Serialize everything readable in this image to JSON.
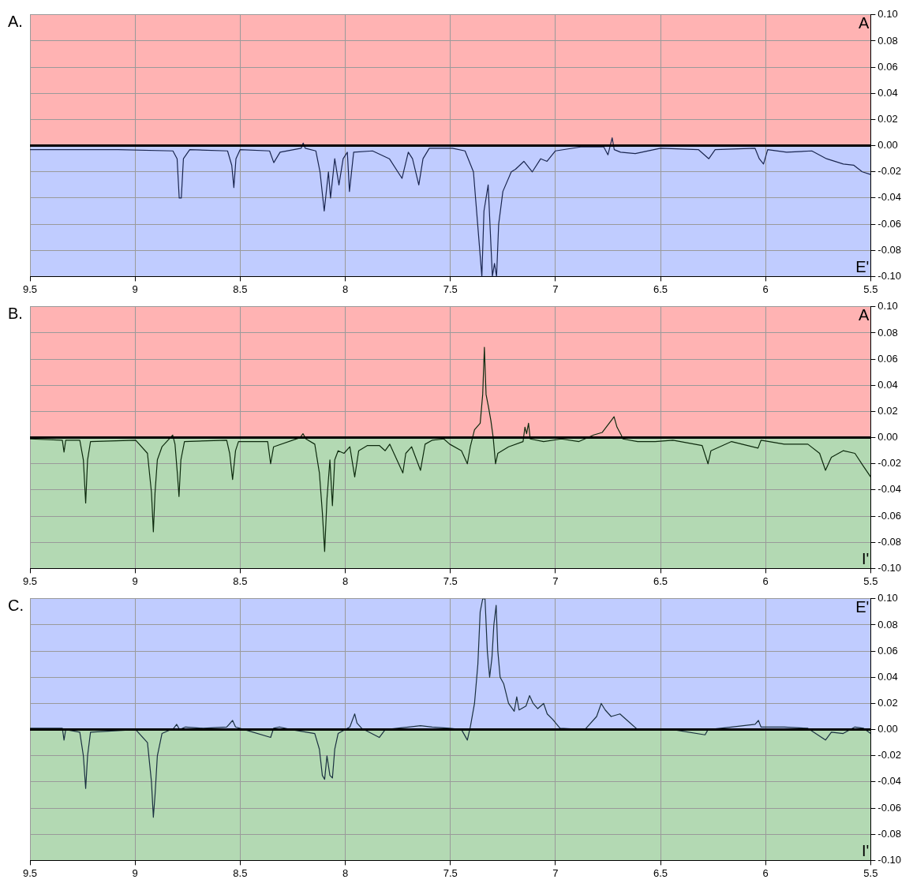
{
  "chart_data": [
    {
      "type": "line",
      "title": "A.",
      "xlim": [
        9.5,
        5.5
      ],
      "xticks": [
        9.5,
        9,
        8.5,
        8,
        7.5,
        7,
        6.5,
        6,
        5.5
      ],
      "ylim": [
        -0.1,
        0.1
      ],
      "yticks": [
        {
          "value": 0.1,
          "label": "0.10"
        },
        {
          "value": 0.08,
          "label": "0.08"
        },
        {
          "value": 0.06,
          "label": "0.06"
        },
        {
          "value": 0.04,
          "label": "0.04"
        },
        {
          "value": 0.02,
          "label": "0.02"
        },
        {
          "value": 0,
          "label": "0.00"
        },
        {
          "value": -0.02,
          "label": "-0.02"
        },
        {
          "value": -0.04,
          "label": "-0.04"
        },
        {
          "value": -0.06,
          "label": "-0.06"
        },
        {
          "value": -0.08,
          "label": "-0.08"
        },
        {
          "value": -0.1,
          "label": "-0.10"
        }
      ],
      "grid": true,
      "legend": false,
      "marker": "none",
      "line_style": "solid",
      "bands": [
        {
          "axis": "y",
          "from": 0,
          "to": 0.1,
          "label": "A",
          "color": "#ffb3b3"
        },
        {
          "axis": "y",
          "from": -0.1,
          "to": 0,
          "label": "E'",
          "color": "#c0ccff"
        }
      ],
      "ref_lines": [
        {
          "axis": "y",
          "value": 0,
          "color": "#000000"
        }
      ],
      "series": [
        {
          "color": "#1a2650",
          "x": [
            9.5,
            9.08,
            8.82,
            8.8,
            8.79,
            8.78,
            8.77,
            8.74,
            8.56,
            8.54,
            8.53,
            8.52,
            8.5,
            8.36,
            8.34,
            8.31,
            8.21,
            8.2,
            8.19,
            8.14,
            8.12,
            8.1,
            8.08,
            8.07,
            8.05,
            8.03,
            8.01,
            7.99,
            7.98,
            7.96,
            7.87,
            7.83,
            7.79,
            7.73,
            7.7,
            7.68,
            7.65,
            7.63,
            7.6,
            7.49,
            7.43,
            7.39,
            7.37,
            7.35,
            7.34,
            7.32,
            7.3,
            7.29,
            7.28,
            7.27,
            7.25,
            7.21,
            7.19,
            7.15,
            7.11,
            7.07,
            7.04,
            7.0,
            6.88,
            6.77,
            6.75,
            6.73,
            6.72,
            6.69,
            6.62,
            6.5,
            6.32,
            6.27,
            6.24,
            6.05,
            6.03,
            6.01,
            5.99,
            5.9,
            5.78,
            5.71,
            5.63,
            5.58,
            5.54,
            5.5
          ],
          "values": [
            -0.003,
            -0.003,
            -0.004,
            -0.01,
            -0.04,
            -0.04,
            -0.01,
            -0.003,
            -0.004,
            -0.015,
            -0.032,
            -0.01,
            -0.003,
            -0.004,
            -0.013,
            -0.005,
            -0.002,
            0.002,
            -0.002,
            -0.004,
            -0.02,
            -0.05,
            -0.02,
            -0.04,
            -0.01,
            -0.03,
            -0.01,
            -0.005,
            -0.035,
            -0.005,
            -0.004,
            -0.007,
            -0.01,
            -0.025,
            -0.005,
            -0.01,
            -0.03,
            -0.01,
            -0.002,
            -0.002,
            -0.004,
            -0.02,
            -0.06,
            -0.1,
            -0.05,
            -0.03,
            -0.1,
            -0.09,
            -0.1,
            -0.06,
            -0.035,
            -0.02,
            -0.018,
            -0.012,
            -0.02,
            -0.01,
            -0.012,
            -0.004,
            -0.001,
            -0.001,
            -0.007,
            0.006,
            -0.003,
            -0.005,
            -0.006,
            -0.002,
            -0.003,
            -0.01,
            -0.003,
            -0.002,
            -0.01,
            -0.014,
            -0.003,
            -0.005,
            -0.004,
            -0.01,
            -0.014,
            -0.015,
            -0.02,
            -0.022
          ]
        }
      ]
    },
    {
      "type": "line",
      "title": "B.",
      "xlim": [
        9.5,
        5.5
      ],
      "xticks": [
        9.5,
        9,
        8.5,
        8,
        7.5,
        7,
        6.5,
        6,
        5.5
      ],
      "ylim": [
        -0.1,
        0.1
      ],
      "yticks": [
        {
          "value": 0.1,
          "label": "0.10"
        },
        {
          "value": 0.08,
          "label": "0.08"
        },
        {
          "value": 0.06,
          "label": "0.06"
        },
        {
          "value": 0.04,
          "label": "0.04"
        },
        {
          "value": 0.02,
          "label": "0.02"
        },
        {
          "value": 0,
          "label": "0.00"
        },
        {
          "value": -0.02,
          "label": "-0.02"
        },
        {
          "value": -0.04,
          "label": "-0.04"
        },
        {
          "value": -0.06,
          "label": "-0.06"
        },
        {
          "value": -0.08,
          "label": "-0.08"
        },
        {
          "value": -0.1,
          "label": "-0.10"
        }
      ],
      "grid": true,
      "legend": false,
      "marker": "none",
      "line_style": "solid",
      "bands": [
        {
          "axis": "y",
          "from": 0,
          "to": 0.1,
          "label": "A",
          "color": "#ffb3b3"
        },
        {
          "axis": "y",
          "from": -0.1,
          "to": 0,
          "label": "I'",
          "color": "#b3d9b3"
        }
      ],
      "ref_lines": [
        {
          "axis": "y",
          "value": 0,
          "color": "#000000"
        }
      ],
      "series": [
        {
          "color": "#0d2a0d",
          "x": [
            9.5,
            9.346,
            9.338,
            9.33,
            9.263,
            9.246,
            9.235,
            9.226,
            9.212,
            8.997,
            8.941,
            8.922,
            8.913,
            8.905,
            8.894,
            8.872,
            8.821,
            8.81,
            8.799,
            8.791,
            8.782,
            8.765,
            8.564,
            8.55,
            8.536,
            8.522,
            8.508,
            8.369,
            8.355,
            8.341,
            8.215,
            8.201,
            8.187,
            8.145,
            8.123,
            8.109,
            8.098,
            8.087,
            8.073,
            8.061,
            8.05,
            8.034,
            8.006,
            7.978,
            7.955,
            7.936,
            7.894,
            7.838,
            7.81,
            7.788,
            7.726,
            7.712,
            7.684,
            7.642,
            7.62,
            7.587,
            7.531,
            7.503,
            7.447,
            7.419,
            7.405,
            7.385,
            7.358,
            7.346,
            7.338,
            7.33,
            7.318,
            7.307,
            7.296,
            7.285,
            7.274,
            7.223,
            7.154,
            7.145,
            7.137,
            7.128,
            7.12,
            7.056,
            6.972,
            6.888,
            6.818,
            6.777,
            6.735,
            6.721,
            6.707,
            6.687,
            6.679,
            6.609,
            6.525,
            6.441,
            6.302,
            6.274,
            6.26,
            6.162,
            6.036,
            6.022,
            5.911,
            5.799,
            5.743,
            5.715,
            5.687,
            5.631,
            5.575,
            5.534,
            5.5
          ],
          "values": [
            -0.001,
            -0.002,
            -0.011,
            -0.002,
            -0.002,
            -0.017,
            -0.05,
            -0.017,
            -0.003,
            -0.002,
            -0.012,
            -0.042,
            -0.072,
            -0.042,
            -0.017,
            -0.007,
            0.002,
            -0.005,
            -0.027,
            -0.045,
            -0.017,
            -0.003,
            -0.002,
            -0.012,
            -0.032,
            -0.01,
            -0.003,
            -0.003,
            -0.02,
            -0.007,
            0,
            0.003,
            -0.001,
            -0.005,
            -0.027,
            -0.057,
            -0.087,
            -0.047,
            -0.017,
            -0.052,
            -0.017,
            -0.01,
            -0.012,
            -0.007,
            -0.03,
            -0.01,
            -0.006,
            -0.006,
            -0.01,
            -0.005,
            -0.027,
            -0.012,
            -0.007,
            -0.025,
            -0.005,
            -0.002,
            -0.001,
            -0.005,
            -0.01,
            -0.02,
            -0.007,
            0.006,
            0.011,
            0.033,
            0.069,
            0.033,
            0.023,
            0.013,
            0,
            -0.02,
            -0.012,
            -0.007,
            -0.003,
            0.008,
            0.003,
            0.011,
            -0.001,
            -0.003,
            -0.001,
            -0.003,
            0.002,
            0.004,
            0.013,
            0.016,
            0.008,
            0.002,
            -0.001,
            -0.003,
            -0.003,
            -0.002,
            -0.006,
            -0.02,
            -0.01,
            -0.003,
            -0.008,
            -0.002,
            -0.005,
            -0.005,
            -0.012,
            -0.025,
            -0.015,
            -0.01,
            -0.012,
            -0.022,
            -0.03
          ]
        }
      ]
    },
    {
      "type": "line",
      "title": "C.",
      "xlim": [
        9.5,
        5.5
      ],
      "xticks": [
        9.5,
        9,
        8.5,
        8,
        7.5,
        7,
        6.5,
        6,
        5.5
      ],
      "ylim": [
        -0.1,
        0.1
      ],
      "yticks": [
        {
          "value": 0.1,
          "label": "0.10"
        },
        {
          "value": 0.08,
          "label": "0.08"
        },
        {
          "value": 0.06,
          "label": "0.06"
        },
        {
          "value": 0.04,
          "label": "0.04"
        },
        {
          "value": 0.02,
          "label": "0.02"
        },
        {
          "value": 0,
          "label": "0.00"
        },
        {
          "value": -0.02,
          "label": "-0.02"
        },
        {
          "value": -0.04,
          "label": "-0.04"
        },
        {
          "value": -0.06,
          "label": "-0.06"
        },
        {
          "value": -0.08,
          "label": "-0.08"
        },
        {
          "value": -0.1,
          "label": "-0.10"
        }
      ],
      "grid": true,
      "legend": false,
      "marker": "none",
      "line_style": "solid",
      "bands": [
        {
          "axis": "y",
          "from": 0,
          "to": 0.1,
          "label": "E'",
          "color": "#c0ccff"
        },
        {
          "axis": "y",
          "from": -0.1,
          "to": 0,
          "label": "I'",
          "color": "#b3d9b3"
        }
      ],
      "ref_lines": [
        {
          "axis": "y",
          "value": 0,
          "color": "#000000"
        }
      ],
      "series": [
        {
          "color": "#1a3040",
          "x": [
            9.5,
            9.346,
            9.338,
            9.33,
            9.263,
            9.246,
            9.235,
            9.226,
            9.212,
            8.997,
            8.941,
            8.922,
            8.913,
            8.905,
            8.894,
            8.872,
            8.816,
            8.802,
            8.788,
            8.76,
            8.676,
            8.564,
            8.536,
            8.522,
            8.48,
            8.355,
            8.341,
            8.313,
            8.257,
            8.145,
            8.123,
            8.109,
            8.098,
            8.087,
            8.073,
            8.061,
            8.05,
            8.034,
            7.978,
            7.955,
            7.944,
            7.922,
            7.838,
            7.81,
            7.698,
            7.642,
            7.587,
            7.503,
            7.447,
            7.419,
            7.405,
            7.385,
            7.369,
            7.358,
            7.346,
            7.335,
            7.324,
            7.313,
            7.302,
            7.293,
            7.282,
            7.274,
            7.263,
            7.246,
            7.223,
            7.196,
            7.184,
            7.173,
            7.14,
            7.123,
            7.106,
            7.084,
            7.056,
            7.039,
            7.014,
            6.978,
            6.86,
            6.804,
            6.782,
            6.763,
            6.735,
            6.693,
            6.637,
            6.609,
            6.441,
            6.288,
            6.274,
            6.162,
            6.05,
            6.034,
            6.022,
            5.911,
            5.799,
            5.715,
            5.687,
            5.631,
            5.575,
            5.534,
            5.5
          ],
          "values": [
            0.001,
            0.001,
            -0.008,
            0,
            -0.002,
            -0.02,
            -0.045,
            -0.02,
            -0.002,
            0,
            -0.01,
            -0.04,
            -0.067,
            -0.05,
            -0.02,
            -0.003,
            0.001,
            0.004,
            0,
            0.002,
            0.001,
            0.002,
            0.007,
            0.002,
            0,
            -0.006,
            0.001,
            0.002,
            0,
            -0.003,
            -0.015,
            -0.035,
            -0.038,
            -0.02,
            -0.035,
            -0.037,
            -0.015,
            -0.003,
            0.002,
            0.012,
            0.005,
            0.001,
            -0.006,
            0,
            0.002,
            0.003,
            0.002,
            0.001,
            0,
            -0.008,
            0.002,
            0.02,
            0.05,
            0.09,
            0.1,
            0.1,
            0.06,
            0.04,
            0.055,
            0.08,
            0.095,
            0.06,
            0.04,
            0.035,
            0.02,
            0.014,
            0.025,
            0.015,
            0.018,
            0.026,
            0.02,
            0.016,
            0.02,
            0.012,
            0.008,
            0.001,
            0,
            0.01,
            0.02,
            0.015,
            0.01,
            0.012,
            0.004,
            0,
            0,
            -0.004,
            0,
            0.002,
            0.004,
            0.007,
            0.002,
            0.002,
            0.001,
            -0.008,
            -0.002,
            -0.003,
            0.002,
            0.001,
            -0.003
          ]
        }
      ]
    }
  ]
}
